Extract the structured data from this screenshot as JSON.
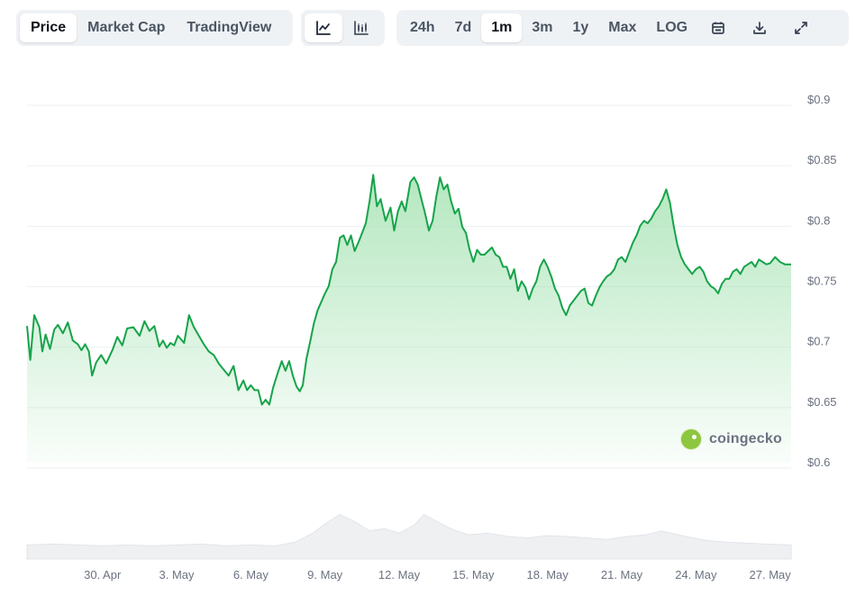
{
  "toolbar": {
    "chart_types": [
      {
        "label": "Price",
        "active": true
      },
      {
        "label": "Market Cap",
        "active": false
      },
      {
        "label": "TradingView",
        "active": false
      }
    ],
    "views": [
      {
        "icon": "line-chart-icon",
        "active": true
      },
      {
        "icon": "candlestick-chart-icon",
        "active": false
      }
    ],
    "ranges": [
      {
        "label": "24h",
        "active": false
      },
      {
        "label": "7d",
        "active": false
      },
      {
        "label": "1m",
        "active": true
      },
      {
        "label": "3m",
        "active": false
      },
      {
        "label": "1y",
        "active": false
      },
      {
        "label": "Max",
        "active": false
      },
      {
        "label": "LOG",
        "active": false
      }
    ],
    "actions": [
      "calendar-icon",
      "download-icon",
      "fullscreen-icon"
    ]
  },
  "watermark": {
    "text": "coingecko",
    "icon": "coingecko-logo"
  },
  "colors": {
    "line": "#16a34a",
    "fill_top": "#a7e3b4",
    "grid": "#eceff2",
    "volume": "#eef0f2",
    "active_button_bg": "#ffffff",
    "toolbar_bg": "#eff2f5"
  },
  "chart_data": {
    "type": "line",
    "title": "",
    "xlabel": "",
    "ylabel": "",
    "ylim": [
      0.6,
      0.9
    ],
    "yticks": [
      0.6,
      0.65,
      0.7,
      0.75,
      0.8,
      0.85,
      0.9
    ],
    "ytick_labels": [
      "$0.6",
      "$0.65",
      "$0.7",
      "$0.75",
      "$0.8",
      "$0.85",
      "$0.9"
    ],
    "xlim": [
      -3.05,
      27.85
    ],
    "x_ticks": [
      {
        "day": 0,
        "label": "30. Apr"
      },
      {
        "day": 3,
        "label": "3. May"
      },
      {
        "day": 6,
        "label": "6. May"
      },
      {
        "day": 9,
        "label": "9. May"
      },
      {
        "day": 12,
        "label": "12. May"
      },
      {
        "day": 15,
        "label": "15. May"
      },
      {
        "day": 18,
        "label": "18. May"
      },
      {
        "day": 21,
        "label": "21. May"
      },
      {
        "day": 24,
        "label": "24. May"
      },
      {
        "day": 27,
        "label": "27. May"
      }
    ],
    "x_note": "x values are days since 30 Apr",
    "price": [
      [
        -3.05,
        0.713
      ],
      [
        -2.92,
        0.685
      ],
      [
        -2.76,
        0.722
      ],
      [
        -2.55,
        0.712
      ],
      [
        -2.43,
        0.692
      ],
      [
        -2.3,
        0.706
      ],
      [
        -2.12,
        0.694
      ],
      [
        -1.95,
        0.71
      ],
      [
        -1.8,
        0.714
      ],
      [
        -1.6,
        0.707
      ],
      [
        -1.4,
        0.716
      ],
      [
        -1.2,
        0.701
      ],
      [
        -1.0,
        0.698
      ],
      [
        -0.85,
        0.693
      ],
      [
        -0.7,
        0.698
      ],
      [
        -0.55,
        0.692
      ],
      [
        -0.42,
        0.672
      ],
      [
        -0.25,
        0.683
      ],
      [
        -0.05,
        0.689
      ],
      [
        0.15,
        0.682
      ],
      [
        0.4,
        0.693
      ],
      [
        0.6,
        0.704
      ],
      [
        0.8,
        0.697
      ],
      [
        1.0,
        0.711
      ],
      [
        1.25,
        0.712
      ],
      [
        1.5,
        0.705
      ],
      [
        1.7,
        0.717
      ],
      [
        1.9,
        0.709
      ],
      [
        2.1,
        0.713
      ],
      [
        2.3,
        0.696
      ],
      [
        2.45,
        0.701
      ],
      [
        2.6,
        0.695
      ],
      [
        2.75,
        0.699
      ],
      [
        2.9,
        0.697
      ],
      [
        3.05,
        0.705
      ],
      [
        3.3,
        0.699
      ],
      [
        3.5,
        0.722
      ],
      [
        3.7,
        0.712
      ],
      [
        3.9,
        0.705
      ],
      [
        4.1,
        0.698
      ],
      [
        4.3,
        0.692
      ],
      [
        4.5,
        0.689
      ],
      [
        4.7,
        0.682
      ],
      [
        4.9,
        0.677
      ],
      [
        5.1,
        0.672
      ],
      [
        5.3,
        0.68
      ],
      [
        5.5,
        0.66
      ],
      [
        5.7,
        0.668
      ],
      [
        5.85,
        0.66
      ],
      [
        6.0,
        0.664
      ],
      [
        6.15,
        0.66
      ],
      [
        6.3,
        0.66
      ],
      [
        6.45,
        0.648
      ],
      [
        6.6,
        0.652
      ],
      [
        6.75,
        0.648
      ],
      [
        6.9,
        0.662
      ],
      [
        7.1,
        0.675
      ],
      [
        7.25,
        0.684
      ],
      [
        7.4,
        0.676
      ],
      [
        7.55,
        0.684
      ],
      [
        7.7,
        0.672
      ],
      [
        7.85,
        0.663
      ],
      [
        7.98,
        0.659
      ],
      [
        8.1,
        0.664
      ],
      [
        8.25,
        0.686
      ],
      [
        8.4,
        0.7
      ],
      [
        8.55,
        0.715
      ],
      [
        8.7,
        0.726
      ],
      [
        8.85,
        0.733
      ],
      [
        9.0,
        0.74
      ],
      [
        9.15,
        0.746
      ],
      [
        9.3,
        0.76
      ],
      [
        9.45,
        0.766
      ],
      [
        9.6,
        0.786
      ],
      [
        9.75,
        0.788
      ],
      [
        9.9,
        0.78
      ],
      [
        10.05,
        0.788
      ],
      [
        10.2,
        0.775
      ],
      [
        10.35,
        0.782
      ],
      [
        10.5,
        0.79
      ],
      [
        10.65,
        0.798
      ],
      [
        10.8,
        0.816
      ],
      [
        10.95,
        0.838
      ],
      [
        11.1,
        0.812
      ],
      [
        11.25,
        0.818
      ],
      [
        11.45,
        0.8
      ],
      [
        11.65,
        0.811
      ],
      [
        11.8,
        0.792
      ],
      [
        11.95,
        0.808
      ],
      [
        12.1,
        0.816
      ],
      [
        12.25,
        0.808
      ],
      [
        12.45,
        0.832
      ],
      [
        12.6,
        0.836
      ],
      [
        12.75,
        0.83
      ],
      [
        12.9,
        0.818
      ],
      [
        13.05,
        0.806
      ],
      [
        13.2,
        0.792
      ],
      [
        13.35,
        0.8
      ],
      [
        13.5,
        0.82
      ],
      [
        13.65,
        0.836
      ],
      [
        13.8,
        0.826
      ],
      [
        13.95,
        0.83
      ],
      [
        14.1,
        0.816
      ],
      [
        14.25,
        0.806
      ],
      [
        14.4,
        0.81
      ],
      [
        14.55,
        0.795
      ],
      [
        14.7,
        0.79
      ],
      [
        14.85,
        0.776
      ],
      [
        15.0,
        0.766
      ],
      [
        15.15,
        0.776
      ],
      [
        15.3,
        0.772
      ],
      [
        15.45,
        0.772
      ],
      [
        15.6,
        0.775
      ],
      [
        15.75,
        0.778
      ],
      [
        15.9,
        0.772
      ],
      [
        16.05,
        0.77
      ],
      [
        16.2,
        0.762
      ],
      [
        16.35,
        0.762
      ],
      [
        16.5,
        0.752
      ],
      [
        16.65,
        0.76
      ],
      [
        16.8,
        0.742
      ],
      [
        16.95,
        0.75
      ],
      [
        17.1,
        0.745
      ],
      [
        17.25,
        0.735
      ],
      [
        17.4,
        0.744
      ],
      [
        17.55,
        0.75
      ],
      [
        17.7,
        0.762
      ],
      [
        17.85,
        0.768
      ],
      [
        18.0,
        0.762
      ],
      [
        18.15,
        0.754
      ],
      [
        18.3,
        0.744
      ],
      [
        18.45,
        0.738
      ],
      [
        18.6,
        0.728
      ],
      [
        18.75,
        0.722
      ],
      [
        18.9,
        0.73
      ],
      [
        19.05,
        0.734
      ],
      [
        19.2,
        0.738
      ],
      [
        19.35,
        0.742
      ],
      [
        19.5,
        0.744
      ],
      [
        19.65,
        0.732
      ],
      [
        19.8,
        0.73
      ],
      [
        19.95,
        0.738
      ],
      [
        20.1,
        0.745
      ],
      [
        20.25,
        0.75
      ],
      [
        20.4,
        0.754
      ],
      [
        20.55,
        0.756
      ],
      [
        20.7,
        0.76
      ],
      [
        20.85,
        0.768
      ],
      [
        21.0,
        0.77
      ],
      [
        21.15,
        0.766
      ],
      [
        21.3,
        0.774
      ],
      [
        21.45,
        0.782
      ],
      [
        21.6,
        0.788
      ],
      [
        21.75,
        0.796
      ],
      [
        21.9,
        0.8
      ],
      [
        22.05,
        0.798
      ],
      [
        22.2,
        0.802
      ],
      [
        22.35,
        0.808
      ],
      [
        22.5,
        0.812
      ],
      [
        22.65,
        0.818
      ],
      [
        22.8,
        0.826
      ],
      [
        22.95,
        0.815
      ],
      [
        23.1,
        0.796
      ],
      [
        23.25,
        0.78
      ],
      [
        23.4,
        0.77
      ],
      [
        23.55,
        0.764
      ],
      [
        23.7,
        0.76
      ],
      [
        23.85,
        0.756
      ],
      [
        24.0,
        0.76
      ],
      [
        24.15,
        0.762
      ],
      [
        24.3,
        0.758
      ],
      [
        24.45,
        0.75
      ],
      [
        24.6,
        0.746
      ],
      [
        24.75,
        0.744
      ],
      [
        24.9,
        0.74
      ],
      [
        25.05,
        0.748
      ],
      [
        25.2,
        0.752
      ],
      [
        25.35,
        0.752
      ],
      [
        25.5,
        0.758
      ],
      [
        25.65,
        0.76
      ],
      [
        25.8,
        0.756
      ],
      [
        25.95,
        0.762
      ],
      [
        26.1,
        0.764
      ],
      [
        26.25,
        0.766
      ],
      [
        26.4,
        0.762
      ],
      [
        26.55,
        0.768
      ],
      [
        26.7,
        0.766
      ],
      [
        26.85,
        0.764
      ],
      [
        27.0,
        0.765
      ],
      [
        27.2,
        0.77
      ],
      [
        27.4,
        0.766
      ],
      [
        27.6,
        0.764
      ],
      [
        27.85,
        0.764
      ]
    ],
    "volume_note": "relative volume shown as gray area beneath the price chart (no axis)",
    "volume_relative": [
      [
        -3.05,
        0.3
      ],
      [
        -2.0,
        0.32
      ],
      [
        -1.0,
        0.3
      ],
      [
        0.0,
        0.28
      ],
      [
        1.0,
        0.3
      ],
      [
        2.0,
        0.28
      ],
      [
        3.0,
        0.3
      ],
      [
        4.0,
        0.32
      ],
      [
        5.0,
        0.28
      ],
      [
        6.0,
        0.3
      ],
      [
        7.0,
        0.28
      ],
      [
        7.8,
        0.36
      ],
      [
        8.5,
        0.55
      ],
      [
        9.0,
        0.75
      ],
      [
        9.6,
        0.95
      ],
      [
        10.2,
        0.8
      ],
      [
        10.8,
        0.6
      ],
      [
        11.4,
        0.65
      ],
      [
        12.0,
        0.55
      ],
      [
        12.6,
        0.72
      ],
      [
        13.0,
        0.95
      ],
      [
        13.6,
        0.78
      ],
      [
        14.2,
        0.62
      ],
      [
        14.8,
        0.52
      ],
      [
        15.6,
        0.55
      ],
      [
        16.4,
        0.48
      ],
      [
        17.2,
        0.45
      ],
      [
        18.0,
        0.5
      ],
      [
        18.8,
        0.48
      ],
      [
        19.6,
        0.45
      ],
      [
        20.4,
        0.42
      ],
      [
        21.2,
        0.48
      ],
      [
        22.0,
        0.52
      ],
      [
        22.6,
        0.6
      ],
      [
        23.0,
        0.55
      ],
      [
        23.6,
        0.48
      ],
      [
        24.4,
        0.4
      ],
      [
        25.2,
        0.36
      ],
      [
        26.0,
        0.34
      ],
      [
        26.8,
        0.32
      ],
      [
        27.85,
        0.3
      ]
    ]
  }
}
